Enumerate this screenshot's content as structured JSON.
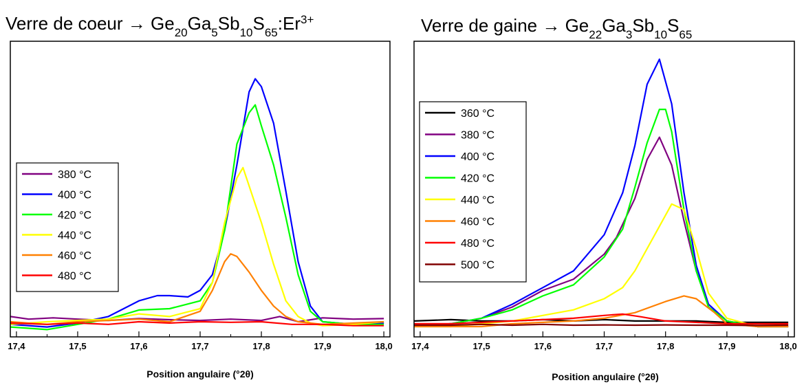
{
  "chart_data": [
    {
      "type": "line",
      "title_parts": [
        "Verre de coeur → Ge",
        "20",
        "Ga",
        "5",
        "Sb",
        "10",
        "S",
        "65",
        ":Er",
        "3+"
      ],
      "xlabel": "Position angulaire (°2θ)",
      "ylabel": "",
      "xlim": [
        17.39,
        18.01
      ],
      "ylim": [
        0,
        1.0
      ],
      "x_ticks": [
        "17,4",
        "17,5",
        "17,6",
        "17,7",
        "17,8",
        "17,9",
        "18,0"
      ],
      "x_tick_values": [
        17.4,
        17.5,
        17.6,
        17.7,
        17.8,
        17.9,
        18.0
      ],
      "grid": false,
      "legend_position": "left",
      "series": [
        {
          "name": "380 °C",
          "color": "#800080",
          "x": [
            17.39,
            17.42,
            17.46,
            17.5,
            17.55,
            17.6,
            17.65,
            17.7,
            17.75,
            17.8,
            17.83,
            17.86,
            17.9,
            17.95,
            18.0
          ],
          "y": [
            0.02,
            0.01,
            0.015,
            0.01,
            0.005,
            0.012,
            0.008,
            0.005,
            0.01,
            0.005,
            0.02,
            0.0,
            0.015,
            0.01,
            0.012
          ]
        },
        {
          "name": "400 °C",
          "color": "#0000ff",
          "x": [
            17.39,
            17.45,
            17.5,
            17.55,
            17.6,
            17.63,
            17.65,
            17.68,
            17.7,
            17.72,
            17.74,
            17.76,
            17.78,
            17.79,
            17.8,
            17.82,
            17.84,
            17.86,
            17.88,
            17.9,
            17.95,
            18.0
          ],
          "y": [
            -0.01,
            -0.02,
            -0.005,
            0.02,
            0.08,
            0.1,
            0.1,
            0.095,
            0.12,
            0.18,
            0.35,
            0.6,
            0.88,
            0.93,
            0.9,
            0.76,
            0.5,
            0.23,
            0.06,
            0.0,
            -0.01,
            -0.005
          ]
        },
        {
          "name": "420 °C",
          "color": "#00ff00",
          "x": [
            17.39,
            17.45,
            17.5,
            17.55,
            17.6,
            17.65,
            17.7,
            17.72,
            17.74,
            17.76,
            17.78,
            17.79,
            17.8,
            17.82,
            17.84,
            17.86,
            17.88,
            17.9,
            17.95,
            18.0
          ],
          "y": [
            -0.02,
            -0.03,
            -0.01,
            0.01,
            0.045,
            0.05,
            0.08,
            0.15,
            0.35,
            0.68,
            0.8,
            0.83,
            0.75,
            0.6,
            0.4,
            0.18,
            0.04,
            0.0,
            -0.01,
            -0.01
          ]
        },
        {
          "name": "440 °C",
          "color": "#ffff00",
          "x": [
            17.39,
            17.45,
            17.5,
            17.55,
            17.6,
            17.65,
            17.7,
            17.72,
            17.74,
            17.76,
            17.77,
            17.78,
            17.8,
            17.82,
            17.84,
            17.86,
            17.88,
            17.9,
            17.95,
            18.0
          ],
          "y": [
            -0.01,
            0.0,
            0.005,
            0.01,
            0.03,
            0.02,
            0.05,
            0.15,
            0.38,
            0.55,
            0.59,
            0.52,
            0.38,
            0.22,
            0.08,
            0.02,
            -0.005,
            -0.015,
            -0.01,
            0.0
          ]
        },
        {
          "name": "460 °C",
          "color": "#ff8000",
          "x": [
            17.39,
            17.45,
            17.5,
            17.55,
            17.6,
            17.65,
            17.7,
            17.72,
            17.74,
            17.75,
            17.76,
            17.78,
            17.8,
            17.82,
            17.84,
            17.86,
            17.9,
            17.95,
            18.0
          ],
          "y": [
            0.0,
            -0.01,
            0.0,
            0.005,
            0.01,
            0.0,
            0.04,
            0.12,
            0.23,
            0.26,
            0.25,
            0.19,
            0.12,
            0.06,
            0.02,
            0.0,
            -0.01,
            -0.005,
            0.0
          ]
        },
        {
          "name": "480 °C",
          "color": "#ff0000",
          "x": [
            17.39,
            17.45,
            17.5,
            17.55,
            17.6,
            17.65,
            17.7,
            17.75,
            17.8,
            17.85,
            17.9,
            17.95,
            18.0
          ],
          "y": [
            -0.005,
            -0.01,
            -0.005,
            -0.01,
            0.0,
            -0.005,
            0.0,
            -0.002,
            0.0,
            -0.01,
            -0.01,
            -0.015,
            -0.015
          ]
        }
      ]
    },
    {
      "type": "line",
      "title_parts": [
        "Verre de gaine → Ge",
        "22",
        "Ga",
        "3",
        "Sb",
        "10",
        "S",
        "65"
      ],
      "xlabel": "Position angulaire (°2θ)",
      "ylabel": "",
      "xlim": [
        17.39,
        18.01
      ],
      "ylim": [
        0,
        1.0
      ],
      "x_ticks": [
        "17,4",
        "17,5",
        "17,6",
        "17,7",
        "17,8",
        "17,9",
        "18,0"
      ],
      "x_tick_values": [
        17.4,
        17.5,
        17.6,
        17.7,
        17.8,
        17.9,
        18.0
      ],
      "grid": false,
      "legend_position": "top-left",
      "series": [
        {
          "name": "360 °C",
          "color": "#000000",
          "x": [
            17.39,
            17.45,
            17.5,
            17.55,
            17.6,
            17.65,
            17.7,
            17.75,
            17.8,
            17.85,
            17.9,
            17.95,
            18.0
          ],
          "y": [
            0.02,
            0.025,
            0.02,
            0.02,
            0.025,
            0.02,
            0.025,
            0.02,
            0.02,
            0.02,
            0.015,
            0.015,
            0.015
          ]
        },
        {
          "name": "380 °C",
          "color": "#800080",
          "x": [
            17.39,
            17.45,
            17.5,
            17.55,
            17.6,
            17.65,
            17.7,
            17.72,
            17.75,
            17.77,
            17.79,
            17.81,
            17.83,
            17.85,
            17.87,
            17.9,
            17.95,
            18.0
          ],
          "y": [
            0.0,
            0.01,
            0.03,
            0.07,
            0.13,
            0.17,
            0.26,
            0.32,
            0.46,
            0.6,
            0.68,
            0.58,
            0.38,
            0.2,
            0.08,
            0.02,
            0.0,
            0.0
          ]
        },
        {
          "name": "400 °C",
          "color": "#0000ff",
          "x": [
            17.39,
            17.45,
            17.5,
            17.55,
            17.6,
            17.65,
            17.7,
            17.73,
            17.75,
            17.77,
            17.79,
            17.81,
            17.83,
            17.85,
            17.87,
            17.9,
            17.95,
            18.0
          ],
          "y": [
            0.0,
            0.01,
            0.03,
            0.08,
            0.14,
            0.2,
            0.33,
            0.48,
            0.65,
            0.87,
            0.96,
            0.8,
            0.48,
            0.22,
            0.08,
            0.02,
            0.0,
            0.0
          ]
        },
        {
          "name": "420 °C",
          "color": "#00ff00",
          "x": [
            17.39,
            17.45,
            17.5,
            17.55,
            17.6,
            17.65,
            17.7,
            17.73,
            17.75,
            17.77,
            17.79,
            17.8,
            17.81,
            17.83,
            17.85,
            17.87,
            17.9,
            17.95,
            18.0
          ],
          "y": [
            0.0,
            0.01,
            0.03,
            0.06,
            0.11,
            0.15,
            0.25,
            0.35,
            0.5,
            0.66,
            0.78,
            0.78,
            0.7,
            0.42,
            0.2,
            0.07,
            0.02,
            0.0,
            0.0
          ]
        },
        {
          "name": "440 °C",
          "color": "#ffff00",
          "x": [
            17.39,
            17.45,
            17.5,
            17.55,
            17.6,
            17.65,
            17.7,
            17.73,
            17.75,
            17.77,
            17.79,
            17.81,
            17.83,
            17.85,
            17.87,
            17.9,
            17.95,
            18.0
          ],
          "y": [
            0.0,
            0.0,
            0.01,
            0.02,
            0.04,
            0.06,
            0.1,
            0.14,
            0.2,
            0.28,
            0.36,
            0.44,
            0.42,
            0.28,
            0.12,
            0.03,
            0.0,
            0.0
          ]
        },
        {
          "name": "460 °C",
          "color": "#ff8000",
          "x": [
            17.39,
            17.45,
            17.5,
            17.55,
            17.6,
            17.65,
            17.7,
            17.75,
            17.8,
            17.83,
            17.85,
            17.88,
            17.9,
            17.95,
            18.0
          ],
          "y": [
            0.0,
            0.0,
            0.0,
            0.01,
            0.015,
            0.02,
            0.03,
            0.05,
            0.09,
            0.11,
            0.1,
            0.05,
            0.01,
            0.0,
            0.0
          ]
        },
        {
          "name": "480 °C",
          "color": "#ff0000",
          "x": [
            17.39,
            17.45,
            17.5,
            17.55,
            17.6,
            17.65,
            17.7,
            17.73,
            17.76,
            17.8,
            17.85,
            17.9,
            17.95,
            18.0
          ],
          "y": [
            0.01,
            0.01,
            0.015,
            0.02,
            0.025,
            0.03,
            0.04,
            0.045,
            0.035,
            0.02,
            0.015,
            0.01,
            0.01,
            0.01
          ]
        },
        {
          "name": "500 °C",
          "color": "#800000",
          "x": [
            17.39,
            17.45,
            17.5,
            17.55,
            17.6,
            17.65,
            17.7,
            17.75,
            17.8,
            17.85,
            17.9,
            17.95,
            18.0
          ],
          "y": [
            0.005,
            0.005,
            0.008,
            0.005,
            0.008,
            0.005,
            0.006,
            0.005,
            0.006,
            0.005,
            0.005,
            0.004,
            0.005
          ]
        }
      ]
    }
  ]
}
